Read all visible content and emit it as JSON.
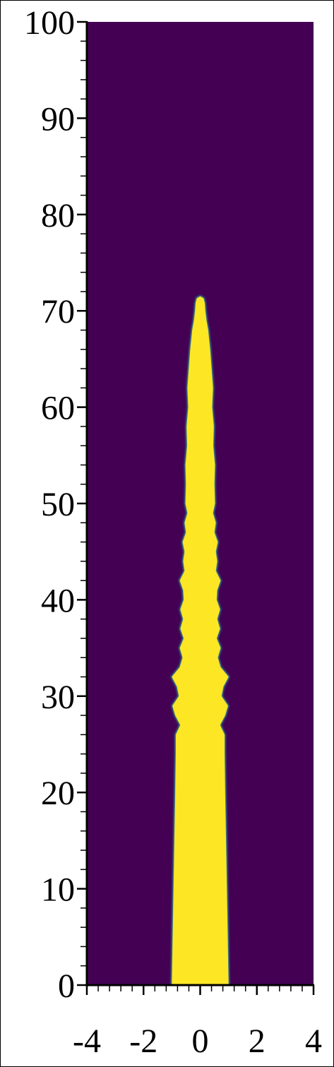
{
  "chart_data": {
    "type": "heatmap",
    "title": "",
    "xlabel": "",
    "ylabel": "",
    "xlim": [
      -4,
      4
    ],
    "ylim": [
      0,
      100
    ],
    "x_ticks": [
      "-4",
      "-2",
      "0",
      "2",
      "4"
    ],
    "y_ticks": [
      "0",
      "10",
      "20",
      "30",
      "40",
      "50",
      "60",
      "70",
      "80",
      "90",
      "100"
    ],
    "colors": {
      "background": "#440154",
      "jet": "#fde725",
      "edge": "#21918c"
    },
    "jet_profile": {
      "y": [
        0,
        5,
        10,
        15,
        20,
        24,
        26,
        27,
        28,
        29,
        30,
        31,
        32,
        33,
        34,
        35,
        36,
        37,
        38,
        39,
        40,
        41,
        42,
        43,
        44,
        45,
        46,
        47,
        48,
        49,
        50,
        52,
        54,
        56,
        58,
        60,
        62,
        64,
        66,
        68,
        69,
        70,
        70.8,
        71.3,
        71.5
      ],
      "half_width": [
        1.0,
        0.97,
        0.94,
        0.91,
        0.88,
        0.86,
        0.86,
        0.7,
        0.88,
        0.98,
        0.75,
        0.82,
        1.0,
        0.72,
        0.62,
        0.72,
        0.58,
        0.7,
        0.6,
        0.7,
        0.58,
        0.6,
        0.72,
        0.55,
        0.6,
        0.55,
        0.62,
        0.5,
        0.55,
        0.45,
        0.52,
        0.5,
        0.52,
        0.46,
        0.48,
        0.42,
        0.45,
        0.4,
        0.35,
        0.28,
        0.22,
        0.18,
        0.16,
        0.12,
        0.0
      ]
    }
  }
}
